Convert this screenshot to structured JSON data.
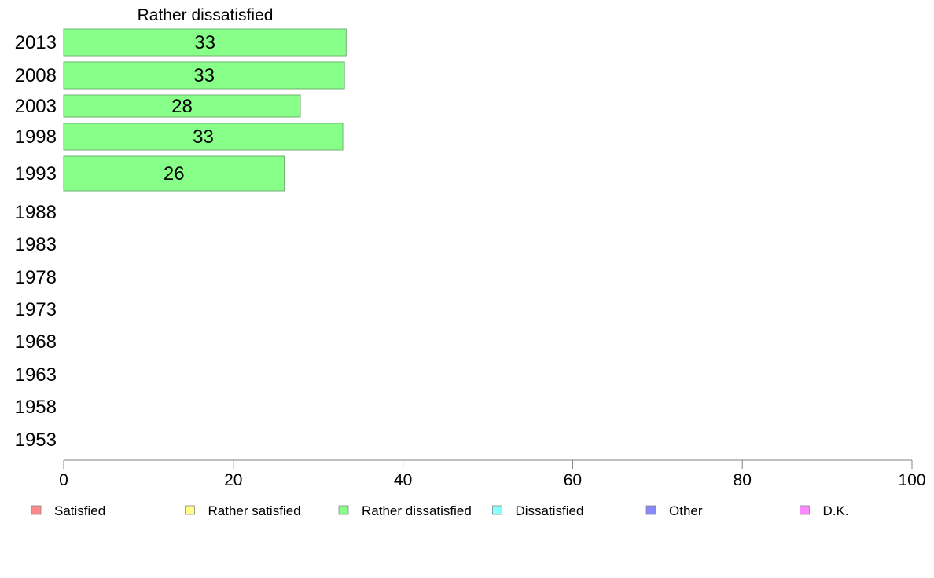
{
  "chart_data": {
    "type": "bar",
    "orientation": "horizontal",
    "title": "Rather dissatisfied",
    "categories": [
      "2013",
      "2008",
      "2003",
      "1998",
      "1993",
      "1988",
      "1983",
      "1978",
      "1973",
      "1968",
      "1963",
      "1958",
      "1953"
    ],
    "values": [
      33.3,
      33.1,
      27.9,
      32.9,
      26.0,
      null,
      null,
      null,
      null,
      null,
      null,
      null,
      null
    ],
    "value_labels": [
      "33",
      "33",
      "28",
      "33",
      "26",
      "",
      "",
      "",
      "",
      "",
      "",
      "",
      ""
    ],
    "bar_color": "#88ff88",
    "xlim": [
      0,
      100
    ],
    "xticks": [
      0,
      20,
      40,
      60,
      80,
      100
    ],
    "grid": false,
    "legend_position": "bottom",
    "legend": [
      {
        "label": "Satisfied",
        "color": "#ff8888"
      },
      {
        "label": "Rather satisfied",
        "color": "#ffff88"
      },
      {
        "label": "Rather dissatisfied",
        "color": "#88ff88"
      },
      {
        "label": "Dissatisfied",
        "color": "#88ffff"
      },
      {
        "label": "Other",
        "color": "#8888ff"
      },
      {
        "label": "D.K.",
        "color": "#ff88ff"
      }
    ]
  }
}
